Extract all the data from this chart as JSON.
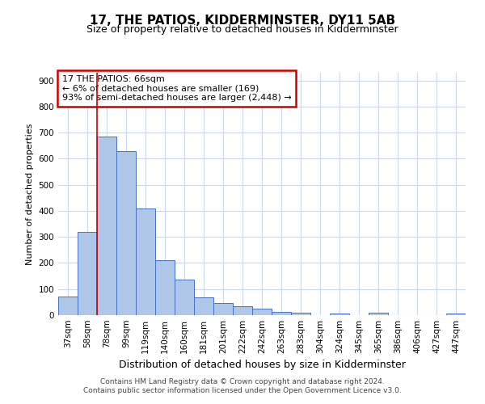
{
  "title": "17, THE PATIOS, KIDDERMINSTER, DY11 5AB",
  "subtitle": "Size of property relative to detached houses in Kidderminster",
  "xlabel": "Distribution of detached houses by size in Kidderminster",
  "ylabel": "Number of detached properties",
  "categories": [
    "37sqm",
    "58sqm",
    "78sqm",
    "99sqm",
    "119sqm",
    "140sqm",
    "160sqm",
    "181sqm",
    "201sqm",
    "222sqm",
    "242sqm",
    "263sqm",
    "283sqm",
    "304sqm",
    "324sqm",
    "345sqm",
    "365sqm",
    "386sqm",
    "406sqm",
    "427sqm",
    "447sqm"
  ],
  "values": [
    70,
    320,
    685,
    630,
    410,
    210,
    137,
    68,
    48,
    33,
    24,
    12,
    8,
    0,
    7,
    0,
    8,
    0,
    0,
    0,
    7
  ],
  "bar_color": "#aec6e8",
  "bar_edge_color": "#4472c4",
  "annotation_text_line1": "17 THE PATIOS: 66sqm",
  "annotation_text_line2": "← 6% of detached houses are smaller (169)",
  "annotation_text_line3": "93% of semi-detached houses are larger (2,448) →",
  "annotation_box_color": "#ffffff",
  "annotation_box_edge_color": "#cc0000",
  "vline_color": "#cc0000",
  "vline_x_index": 1.5,
  "footer_line1": "Contains HM Land Registry data © Crown copyright and database right 2024.",
  "footer_line2": "Contains public sector information licensed under the Open Government Licence v3.0.",
  "ylim": [
    0,
    930
  ],
  "yticks": [
    0,
    100,
    200,
    300,
    400,
    500,
    600,
    700,
    800,
    900
  ],
  "background_color": "#ffffff",
  "grid_color": "#c8d8e8",
  "title_fontsize": 11,
  "subtitle_fontsize": 9,
  "ylabel_fontsize": 8,
  "xlabel_fontsize": 9,
  "tick_fontsize": 7.5,
  "footer_fontsize": 6.5,
  "ann_fontsize": 8
}
